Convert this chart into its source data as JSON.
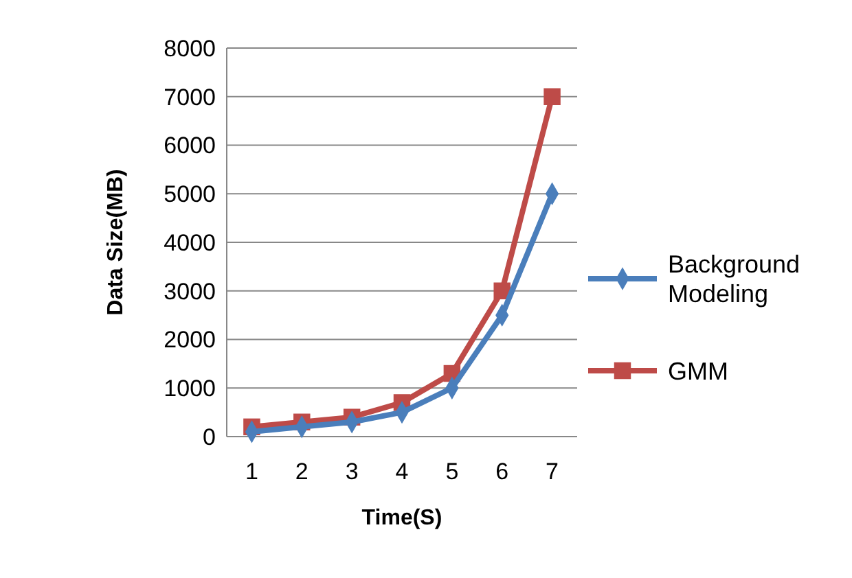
{
  "chart_data": {
    "type": "line",
    "xlabel": "Time(S)",
    "ylabel": "Data Size(MB)",
    "categories": [
      "1",
      "2",
      "3",
      "4",
      "5",
      "6",
      "7"
    ],
    "ylim": [
      0,
      8000
    ],
    "yticks": [
      0,
      1000,
      2000,
      3000,
      4000,
      5000,
      6000,
      7000,
      8000
    ],
    "grid": "y",
    "legend": "right",
    "series": [
      {
        "name": "Background Modeling",
        "color": "#4a7ebb",
        "marker": "diamond",
        "values": [
          100,
          200,
          300,
          500,
          1000,
          2500,
          5000
        ]
      },
      {
        "name": "GMM",
        "color": "#be4b48",
        "marker": "square",
        "values": [
          200,
          300,
          400,
          700,
          1300,
          3000,
          7000
        ]
      }
    ]
  }
}
